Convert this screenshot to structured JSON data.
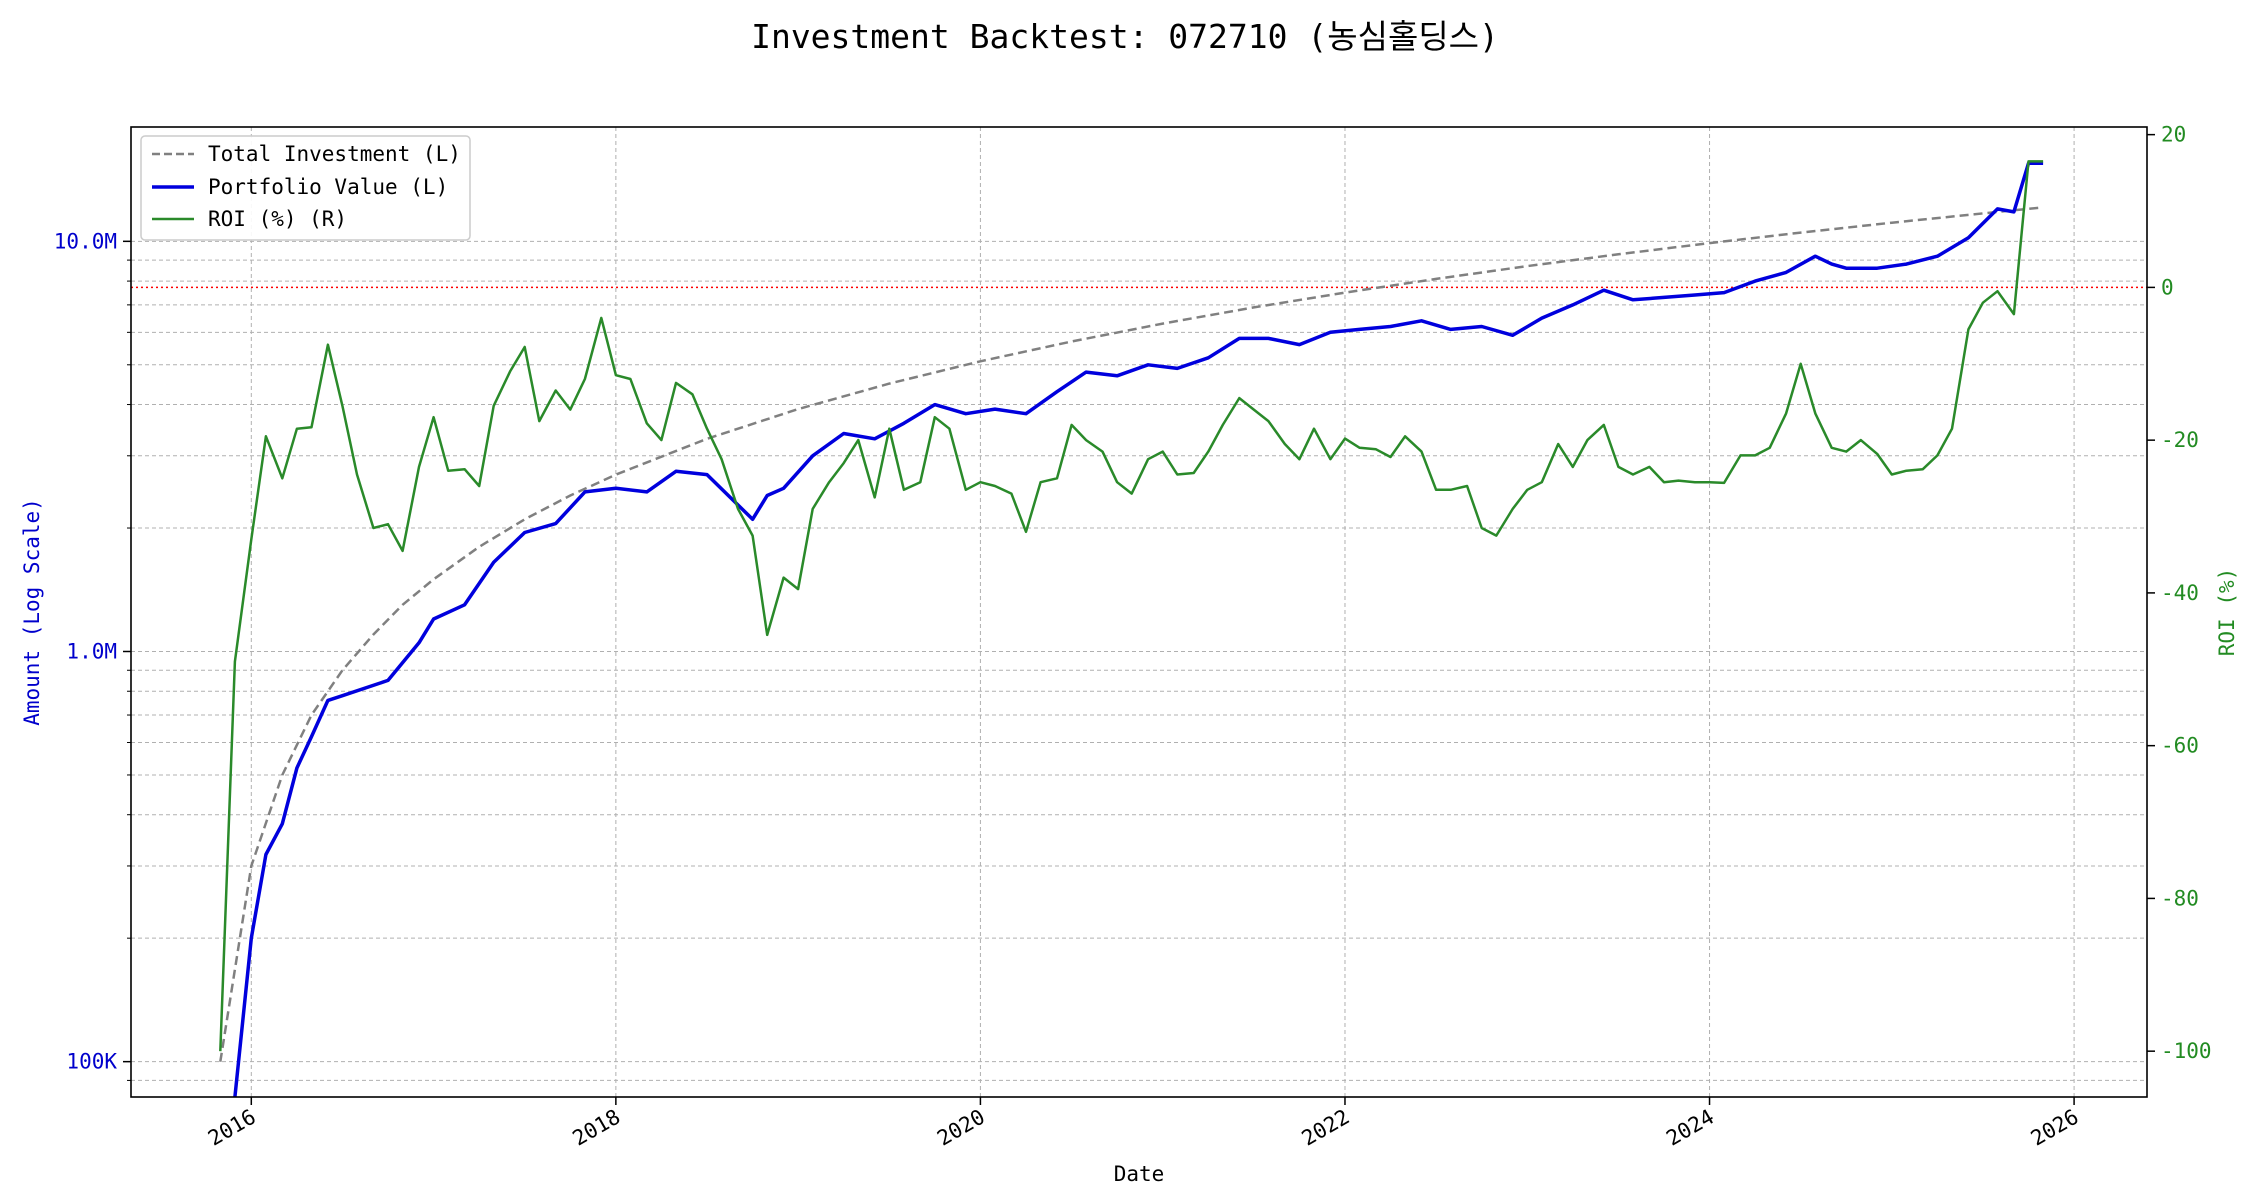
{
  "chart_data": {
    "type": "line",
    "title": "Investment Backtest: 072710 (농심홀딩스)",
    "xlabel": "Date",
    "ylabel_left": "Amount (Log Scale)",
    "ylabel_right": "ROI (%)",
    "left_scale": "log",
    "left_ylim": [
      82000,
      19000000
    ],
    "right_ylim": [
      -106,
      21
    ],
    "xlim": [
      2015.34,
      2026.4
    ],
    "x_ticks": [
      2016,
      2018,
      2020,
      2022,
      2024,
      2026
    ],
    "x_tick_labels": [
      "2016",
      "2018",
      "2020",
      "2022",
      "2024",
      "2026"
    ],
    "left_ticks": [
      100000,
      1000000,
      10000000
    ],
    "left_tick_labels": [
      "100K",
      "1.0M",
      "10.0M"
    ],
    "right_ticks": [
      20,
      0,
      -20,
      -40,
      -60,
      -80,
      -100
    ],
    "right_tick_labels": [
      "20",
      "0",
      "-20",
      "-40",
      "-60",
      "-80",
      "-100"
    ],
    "grid": true,
    "legend_position": "upper-left",
    "reference_line": {
      "axis": "right",
      "value": 0,
      "color": "#ff0000",
      "style": "dotted"
    },
    "legend": [
      {
        "label": "Total Investment (L)",
        "color": "#808080",
        "style": "dashed"
      },
      {
        "label": "Portfolio Value (L)",
        "color": "#0000dd",
        "style": "solid"
      },
      {
        "label": "ROI (%) (R)",
        "color": "#2a8a2a",
        "style": "solid"
      }
    ],
    "series": [
      {
        "name": "Total Investment (L)",
        "axis": "left",
        "x": [
          2015.83,
          2016.0,
          2016.17,
          2016.33,
          2016.5,
          2016.67,
          2016.83,
          2017.0,
          2017.25,
          2017.5,
          2017.75,
          2018.0,
          2018.5,
          2019.0,
          2019.5,
          2020.0,
          2020.5,
          2021.0,
          2021.5,
          2022.0,
          2022.5,
          2023.0,
          2023.5,
          2024.0,
          2024.5,
          2025.0,
          2025.5,
          2025.83
        ],
        "values": [
          100000,
          300000,
          500000,
          700000,
          900000,
          1100000,
          1300000,
          1500000,
          1800000,
          2100000,
          2400000,
          2700000,
          3300000,
          3900000,
          4500000,
          5100000,
          5700000,
          6300000,
          6900000,
          7500000,
          8100000,
          8700000,
          9300000,
          9900000,
          10500000,
          11100000,
          11700000,
          12100000
        ]
      },
      {
        "name": "Portfolio Value (L)",
        "axis": "left",
        "x": [
          2015.91,
          2016.0,
          2016.08,
          2016.17,
          2016.25,
          2016.33,
          2016.42,
          2016.5,
          2016.75,
          2016.92,
          2017.0,
          2017.17,
          2017.33,
          2017.5,
          2017.67,
          2017.83,
          2018.0,
          2018.17,
          2018.33,
          2018.5,
          2018.75,
          2018.83,
          2018.92,
          2019.08,
          2019.25,
          2019.42,
          2019.58,
          2019.75,
          2019.92,
          2020.08,
          2020.25,
          2020.42,
          2020.58,
          2020.75,
          2020.92,
          2021.08,
          2021.25,
          2021.42,
          2021.58,
          2021.75,
          2021.92,
          2022.08,
          2022.25,
          2022.42,
          2022.58,
          2022.75,
          2022.92,
          2023.08,
          2023.25,
          2023.42,
          2023.58,
          2023.75,
          2023.92,
          2024.08,
          2024.25,
          2024.42,
          2024.58,
          2024.67,
          2024.75,
          2024.92,
          2025.08,
          2025.25,
          2025.42,
          2025.58,
          2025.67,
          2025.75,
          2025.83
        ],
        "values": [
          72000,
          200000,
          320000,
          380000,
          520000,
          620000,
          760000,
          780000,
          850000,
          1050000,
          1200000,
          1300000,
          1650000,
          1950000,
          2050000,
          2450000,
          2500000,
          2450000,
          2750000,
          2700000,
          2100000,
          2400000,
          2500000,
          3000000,
          3400000,
          3300000,
          3600000,
          4000000,
          3800000,
          3900000,
          3800000,
          4300000,
          4800000,
          4700000,
          5000000,
          4900000,
          5200000,
          5800000,
          5800000,
          5600000,
          6000000,
          6100000,
          6200000,
          6400000,
          6100000,
          6200000,
          5900000,
          6500000,
          7000000,
          7600000,
          7200000,
          7300000,
          7400000,
          7500000,
          8000000,
          8400000,
          9200000,
          8800000,
          8600000,
          8600000,
          8800000,
          9200000,
          10200000,
          12000000,
          11800000,
          15500000,
          15500000
        ]
      },
      {
        "name": "ROI (%) (R)",
        "axis": "right",
        "x": [
          2015.83,
          2015.91,
          2016.0,
          2016.08,
          2016.17,
          2016.25,
          2016.33,
          2016.42,
          2016.5,
          2016.58,
          2016.67,
          2016.75,
          2016.83,
          2016.92,
          2017.0,
          2017.08,
          2017.17,
          2017.25,
          2017.33,
          2017.42,
          2017.5,
          2017.58,
          2017.67,
          2017.75,
          2017.83,
          2017.92,
          2018.0,
          2018.08,
          2018.17,
          2018.25,
          2018.33,
          2018.42,
          2018.5,
          2018.58,
          2018.67,
          2018.75,
          2018.83,
          2018.92,
          2019.0,
          2019.08,
          2019.17,
          2019.25,
          2019.33,
          2019.42,
          2019.5,
          2019.58,
          2019.67,
          2019.75,
          2019.83,
          2019.92,
          2020.0,
          2020.08,
          2020.17,
          2020.25,
          2020.33,
          2020.42,
          2020.5,
          2020.58,
          2020.67,
          2020.75,
          2020.83,
          2020.92,
          2021.0,
          2021.08,
          2021.17,
          2021.25,
          2021.33,
          2021.42,
          2021.5,
          2021.58,
          2021.67,
          2021.75,
          2021.83,
          2021.92,
          2022.0,
          2022.08,
          2022.17,
          2022.25,
          2022.33,
          2022.42,
          2022.5,
          2022.58,
          2022.67,
          2022.75,
          2022.83,
          2022.92,
          2023.0,
          2023.08,
          2023.17,
          2023.25,
          2023.33,
          2023.42,
          2023.5,
          2023.58,
          2023.67,
          2023.75,
          2023.83,
          2023.92,
          2024.0,
          2024.08,
          2024.17,
          2024.25,
          2024.33,
          2024.42,
          2024.5,
          2024.58,
          2024.67,
          2024.75,
          2024.83,
          2024.92,
          2025.0,
          2025.08,
          2025.17,
          2025.25,
          2025.33,
          2025.42,
          2025.5,
          2025.58,
          2025.67,
          2025.75,
          2025.83
        ],
        "values": [
          -100,
          -49,
          -33,
          -19.5,
          -25,
          -18.5,
          -18.3,
          -7.5,
          -15.5,
          -24.5,
          -31.5,
          -31,
          -34.5,
          -23.5,
          -17,
          -24,
          -23.8,
          -26,
          -15.5,
          -11,
          -7.8,
          -17.5,
          -13.5,
          -16,
          -12,
          -4,
          -11.5,
          -12,
          -17.8,
          -20,
          -12.5,
          -14,
          -18.5,
          -22.5,
          -29,
          -32.5,
          -45.5,
          -38,
          -39.5,
          -29,
          -25.5,
          -23,
          -20,
          -27.5,
          -18.5,
          -26.5,
          -25.5,
          -17,
          -18.5,
          -26.5,
          -25.5,
          -26,
          -27,
          -32,
          -25.5,
          -25,
          -18,
          -20,
          -21.5,
          -25.5,
          -27,
          -22.5,
          -21.5,
          -24.5,
          -24.3,
          -21.5,
          -18,
          -14.5,
          -16,
          -17.5,
          -20.5,
          -22.5,
          -18.5,
          -22.5,
          -19.8,
          -21,
          -21.2,
          -22.2,
          -19.5,
          -21.5,
          -26.5,
          -26.5,
          -26,
          -31.5,
          -32.5,
          -29,
          -26.5,
          -25.5,
          -20.5,
          -23.5,
          -20,
          -18,
          -23.5,
          -24.5,
          -23.5,
          -25.5,
          -25.3,
          -25.5,
          -25.5,
          -25.6,
          -22,
          -22,
          -21,
          -16.5,
          -10,
          -16.5,
          -21,
          -21.5,
          -20,
          -21.8,
          -24.5,
          -24,
          -23.8,
          -22,
          -18.5,
          -5.5,
          -2,
          -0.5,
          -3.5,
          16.5,
          16.5
        ]
      }
    ]
  }
}
